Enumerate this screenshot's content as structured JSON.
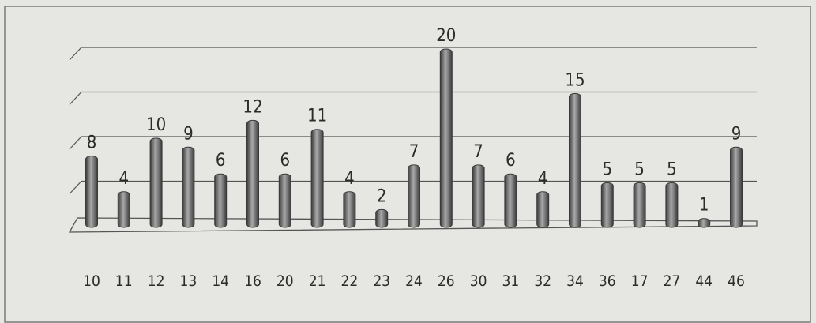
{
  "chart_data": {
    "type": "bar",
    "title": "",
    "xlabel": "",
    "ylabel": "",
    "ylim": [
      0,
      20
    ],
    "grid": true,
    "legend": "none",
    "categories": [
      "10",
      "11",
      "12",
      "13",
      "14",
      "16",
      "20",
      "21",
      "22",
      "23",
      "24",
      "26",
      "30",
      "31",
      "32",
      "34",
      "36",
      "17",
      "27",
      "44",
      "46"
    ],
    "values": [
      8,
      4,
      10,
      9,
      6,
      12,
      6,
      11,
      4,
      2,
      7,
      20,
      7,
      6,
      4,
      15,
      5,
      5,
      5,
      1,
      9
    ],
    "colors": {
      "bar": "#6e6e6e",
      "bar_dark": "#3a3a3a",
      "bar_light": "#a9a9a9",
      "grid": "#555555",
      "text": "#2b2b2b",
      "background": "#e6e6e3"
    }
  }
}
